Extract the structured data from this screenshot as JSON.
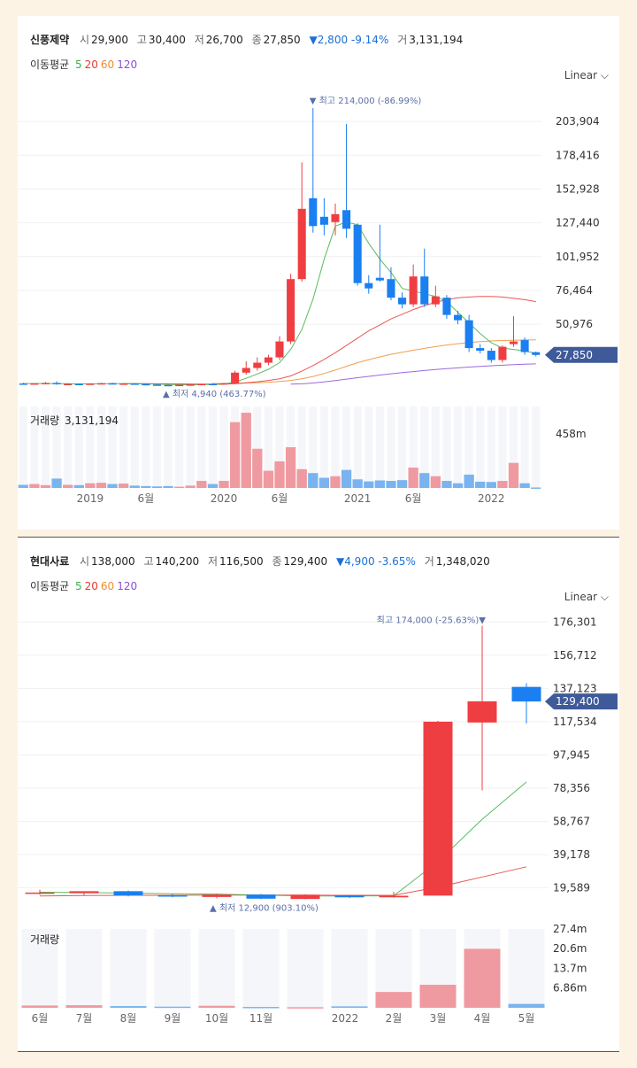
{
  "chart_data": [
    {
      "type": "candlestick",
      "stock": {
        "name": "신풍제약",
        "open_label": "시",
        "open": "29,900",
        "high_label": "고",
        "high": "30,400",
        "low_label": "저",
        "low": "26,700",
        "close_label": "종",
        "close": "27,850",
        "change": "▼2,800 -9.14%",
        "volume_label": "거",
        "volume": "3,131,194"
      },
      "ma_label": "이동평균",
      "ma_periods": [
        {
          "label": "5",
          "color": "#3cb043"
        },
        {
          "label": "20",
          "color": "#e53935"
        },
        {
          "label": "60",
          "color": "#f08c2e"
        },
        {
          "label": "120",
          "color": "#8a4fd8"
        }
      ],
      "scale": "Linear",
      "y_ticks": [
        "203,904",
        "178,416",
        "152,928",
        "127,440",
        "101,952",
        "76,464",
        "50,976"
      ],
      "ylim": [
        3000,
        220000
      ],
      "current_price": "27,850",
      "high_annotation": "▼ 최고 214,000 (-86.99%)",
      "low_annotation": "▲ 최저 4,940 (463.77%)",
      "volume_title_label": "거래량",
      "volume_title_value": "3,131,194",
      "volume_tick": "458m",
      "x_labels": [
        {
          "label": "2019",
          "idx": 6
        },
        {
          "label": "6월",
          "idx": 11
        },
        {
          "label": "2020",
          "idx": 18
        },
        {
          "label": "6월",
          "idx": 23
        },
        {
          "label": "2021",
          "idx": 30
        },
        {
          "label": "6월",
          "idx": 35
        },
        {
          "label": "2022",
          "idx": 42
        }
      ],
      "candles": [
        {
          "o": 6300,
          "h": 6900,
          "l": 5700,
          "c": 6100,
          "v": 20
        },
        {
          "o": 6100,
          "h": 6500,
          "l": 5600,
          "c": 6400,
          "v": 25
        },
        {
          "o": 6400,
          "h": 7400,
          "l": 6000,
          "c": 6700,
          "v": 18
        },
        {
          "o": 6700,
          "h": 8000,
          "l": 5400,
          "c": 5800,
          "v": 60
        },
        {
          "o": 5800,
          "h": 6400,
          "l": 5500,
          "c": 6000,
          "v": 20
        },
        {
          "o": 6000,
          "h": 6300,
          "l": 5600,
          "c": 5800,
          "v": 18
        },
        {
          "o": 5800,
          "h": 6400,
          "l": 5500,
          "c": 6200,
          "v": 30
        },
        {
          "o": 6200,
          "h": 6800,
          "l": 5800,
          "c": 6500,
          "v": 33
        },
        {
          "o": 6500,
          "h": 6900,
          "l": 5900,
          "c": 6100,
          "v": 25
        },
        {
          "o": 6100,
          "h": 6500,
          "l": 5700,
          "c": 6300,
          "v": 28
        },
        {
          "o": 6300,
          "h": 6600,
          "l": 5700,
          "c": 5900,
          "v": 15
        },
        {
          "o": 5900,
          "h": 6200,
          "l": 5300,
          "c": 5500,
          "v": 12
        },
        {
          "o": 5500,
          "h": 5800,
          "l": 5000,
          "c": 5200,
          "v": 10
        },
        {
          "o": 5200,
          "h": 5500,
          "l": 4940,
          "c": 5100,
          "v": 12
        },
        {
          "o": 5100,
          "h": 5500,
          "l": 5000,
          "c": 5300,
          "v": 8
        },
        {
          "o": 5300,
          "h": 5800,
          "l": 5100,
          "c": 5600,
          "v": 15
        },
        {
          "o": 5600,
          "h": 6200,
          "l": 5400,
          "c": 6000,
          "v": 45
        },
        {
          "o": 6000,
          "h": 6600,
          "l": 5700,
          "c": 5900,
          "v": 25
        },
        {
          "o": 5900,
          "h": 6800,
          "l": 5600,
          "c": 6500,
          "v": 45
        },
        {
          "o": 6500,
          "h": 16000,
          "l": 6300,
          "c": 14500,
          "v": 420
        },
        {
          "o": 14500,
          "h": 23000,
          "l": 13000,
          "c": 18000,
          "v": 480
        },
        {
          "o": 18000,
          "h": 26000,
          "l": 16000,
          "c": 22000,
          "v": 250
        },
        {
          "o": 22000,
          "h": 28000,
          "l": 20000,
          "c": 26000,
          "v": 110
        },
        {
          "o": 26000,
          "h": 42000,
          "l": 24000,
          "c": 38000,
          "v": 170
        },
        {
          "o": 38000,
          "h": 89000,
          "l": 36000,
          "c": 85000,
          "v": 260
        },
        {
          "o": 85000,
          "h": 173000,
          "l": 83000,
          "c": 138000,
          "v": 120
        },
        {
          "o": 146000,
          "h": 214000,
          "l": 120000,
          "c": 125000,
          "v": 95
        },
        {
          "o": 132000,
          "h": 146000,
          "l": 118000,
          "c": 126000,
          "v": 65
        },
        {
          "o": 128000,
          "h": 142000,
          "l": 118000,
          "c": 134000,
          "v": 75
        },
        {
          "o": 137000,
          "h": 202000,
          "l": 116000,
          "c": 123000,
          "v": 115
        },
        {
          "o": 126000,
          "h": 127000,
          "l": 80000,
          "c": 82000,
          "v": 55
        },
        {
          "o": 82000,
          "h": 88000,
          "l": 74000,
          "c": 78000,
          "v": 42
        },
        {
          "o": 86000,
          "h": 126000,
          "l": 83000,
          "c": 84000,
          "v": 48
        },
        {
          "o": 85000,
          "h": 94000,
          "l": 69000,
          "c": 71000,
          "v": 45
        },
        {
          "o": 71000,
          "h": 75000,
          "l": 63000,
          "c": 66000,
          "v": 50
        },
        {
          "o": 66000,
          "h": 96000,
          "l": 64000,
          "c": 87000,
          "v": 130
        },
        {
          "o": 87000,
          "h": 108000,
          "l": 64000,
          "c": 66000,
          "v": 95
        },
        {
          "o": 66000,
          "h": 80000,
          "l": 64000,
          "c": 72000,
          "v": 75
        },
        {
          "o": 71000,
          "h": 73000,
          "l": 55000,
          "c": 58000,
          "v": 45
        },
        {
          "o": 58000,
          "h": 61000,
          "l": 51000,
          "c": 54000,
          "v": 30
        },
        {
          "o": 54000,
          "h": 58000,
          "l": 30000,
          "c": 33000,
          "v": 85
        },
        {
          "o": 33000,
          "h": 36000,
          "l": 29000,
          "c": 31000,
          "v": 40
        },
        {
          "o": 31000,
          "h": 33000,
          "l": 22000,
          "c": 24000,
          "v": 38
        },
        {
          "o": 24000,
          "h": 35000,
          "l": 22000,
          "c": 34000,
          "v": 45
        },
        {
          "o": 36000,
          "h": 57000,
          "l": 34000,
          "c": 38000,
          "v": 160
        },
        {
          "o": 39000,
          "h": 41000,
          "l": 28000,
          "c": 30000,
          "v": 30
        },
        {
          "o": 29900,
          "h": 30400,
          "l": 26700,
          "c": 27850,
          "v": 3
        }
      ],
      "ma5": [
        6300,
        6250,
        6350,
        6300,
        6200,
        6100,
        6050,
        6150,
        6200,
        6250,
        6200,
        6050,
        5800,
        5600,
        5400,
        5350,
        5450,
        5600,
        5800,
        7400,
        10200,
        13500,
        17000,
        22000,
        32000,
        47000,
        70000,
        100000,
        125000,
        128000,
        126000,
        112000,
        100000,
        90000,
        78000,
        76000,
        74000,
        72000,
        68000,
        60000,
        52000,
        44000,
        37000,
        33000,
        32000,
        31000,
        29000
      ],
      "ma20": [
        null,
        null,
        null,
        null,
        null,
        null,
        null,
        null,
        null,
        6200,
        6180,
        6150,
        6100,
        6050,
        6000,
        5950,
        5900,
        5880,
        5900,
        6100,
        6800,
        7600,
        8600,
        9900,
        12000,
        15600,
        19800,
        24500,
        29500,
        35000,
        40500,
        46000,
        50500,
        55000,
        58500,
        62000,
        65000,
        67500,
        69500,
        71000,
        71500,
        72000,
        72000,
        71500,
        70500,
        69500,
        68000
      ],
      "ma60": [
        null,
        null,
        null,
        null,
        null,
        null,
        null,
        null,
        null,
        null,
        null,
        null,
        null,
        null,
        null,
        null,
        null,
        6300,
        6250,
        6400,
        6650,
        6950,
        7300,
        7800,
        8600,
        9800,
        11600,
        13900,
        16400,
        19300,
        22000,
        24300,
        26400,
        28300,
        29900,
        31400,
        32800,
        34100,
        35300,
        36300,
        37200,
        37900,
        38400,
        38700,
        38900,
        39100,
        39200
      ],
      "ma120": [
        null,
        null,
        null,
        null,
        null,
        null,
        null,
        null,
        null,
        null,
        null,
        null,
        null,
        null,
        null,
        null,
        null,
        null,
        null,
        null,
        null,
        null,
        null,
        null,
        5800,
        6100,
        6700,
        7500,
        8500,
        9600,
        10700,
        11700,
        12700,
        13600,
        14500,
        15300,
        16100,
        16800,
        17500,
        18100,
        18700,
        19200,
        19700,
        20100,
        20500,
        20800,
        21100
      ]
    },
    {
      "type": "candlestick",
      "stock": {
        "name": "현대사료",
        "open_label": "시",
        "open": "138,000",
        "high_label": "고",
        "high": "140,200",
        "low_label": "저",
        "low": "116,500",
        "close_label": "종",
        "close": "129,400",
        "change": "▼4,900 -3.65%",
        "volume_label": "거",
        "volume": "1,348,020"
      },
      "ma_label": "이동평균",
      "ma_periods": [
        {
          "label": "5",
          "color": "#3cb043"
        },
        {
          "label": "20",
          "color": "#e53935"
        },
        {
          "label": "60",
          "color": "#f08c2e"
        },
        {
          "label": "120",
          "color": "#8a4fd8"
        }
      ],
      "scale": "Linear",
      "y_ticks": [
        "176,301",
        "156,712",
        "137,123",
        "117,534",
        "97,945",
        "78,356",
        "58,767",
        "39,178",
        "19,589"
      ],
      "ylim": [
        11000,
        178000
      ],
      "current_price": "129,400",
      "high_annotation": "최고 174,000 (-25.63%)▼",
      "low_annotation": "▲ 최저 12,900 (903.10%)",
      "volume_title_label": "거래량",
      "volume_title_value": "",
      "volume_ticks": [
        "27.4m",
        "20.6m",
        "13.7m",
        "6.86m"
      ],
      "x_labels": [
        {
          "label": "6월",
          "idx": 0
        },
        {
          "label": "7월",
          "idx": 1
        },
        {
          "label": "8월",
          "idx": 2
        },
        {
          "label": "9월",
          "idx": 3
        },
        {
          "label": "10월",
          "idx": 4
        },
        {
          "label": "11월",
          "idx": 5
        },
        {
          "label": "2022",
          "idx": 6.9
        },
        {
          "label": "2월",
          "idx": 8
        },
        {
          "label": "3월",
          "idx": 9
        },
        {
          "label": "4월",
          "idx": 10
        },
        {
          "label": "5월",
          "idx": 11
        }
      ],
      "candles": [
        {
          "o": 16500,
          "h": 18500,
          "l": 15500,
          "c": 16800,
          "v": 0.8
        },
        {
          "o": 16400,
          "h": 17500,
          "l": 15200,
          "c": 17600,
          "v": 0.9
        },
        {
          "o": 17600,
          "h": 18000,
          "l": 14500,
          "c": 15200,
          "v": 0.6
        },
        {
          "o": 15200,
          "h": 16000,
          "l": 14000,
          "c": 14400,
          "v": 0.4
        },
        {
          "o": 14200,
          "h": 16200,
          "l": 13500,
          "c": 15600,
          "v": 0.7
        },
        {
          "o": 15600,
          "h": 16000,
          "l": 12900,
          "c": 13200,
          "v": 0.3
        },
        {
          "o": 13000,
          "h": 15800,
          "l": 12900,
          "c": 15500,
          "v": 0.2
        },
        {
          "o": 15200,
          "h": 15500,
          "l": 13600,
          "c": 14000,
          "v": 0.5
        },
        {
          "o": 14000,
          "h": 17200,
          "l": 13800,
          "c": 14900,
          "v": 5.5
        },
        {
          "o": 15000,
          "h": 118000,
          "l": 15000,
          "c": 117500,
          "v": 8.0
        },
        {
          "o": 117000,
          "h": 174000,
          "l": 77000,
          "c": 129500,
          "v": 20.5
        },
        {
          "o": 138000,
          "h": 140200,
          "l": 116500,
          "c": 129400,
          "v": 1.35
        }
      ],
      "ma5": [
        17000,
        16800,
        16500,
        16100,
        15900,
        15300,
        14800,
        14800,
        14900,
        35000,
        60000,
        82000
      ],
      "ma20": [
        14800,
        15000,
        15200,
        15200,
        15300,
        15300,
        15300,
        15200,
        15200,
        20000,
        26000,
        32000
      ]
    }
  ]
}
